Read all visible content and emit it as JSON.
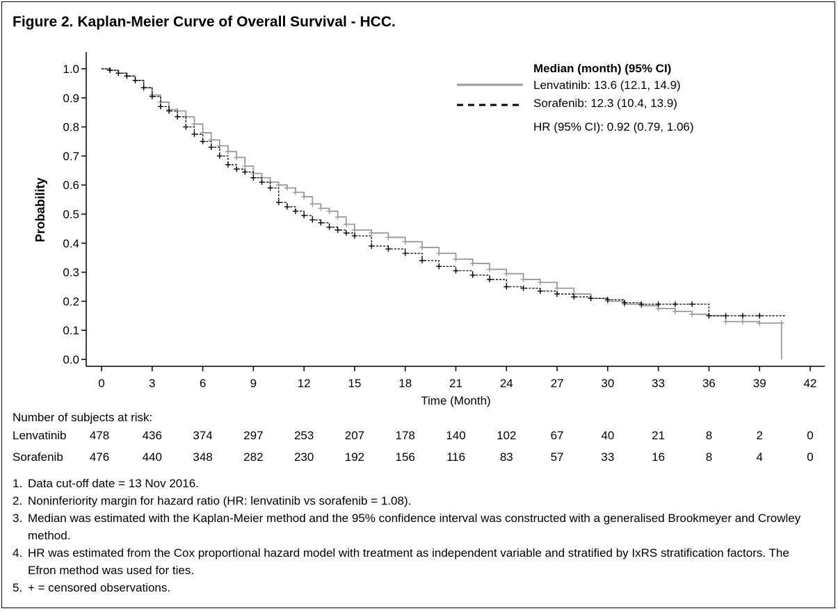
{
  "title": "Figure 2. Kaplan-Meier Curve of Overall Survival - HCC.",
  "chart_data": {
    "type": "line",
    "title": "Figure 2. Kaplan-Meier Curve of Overall Survival - HCC.",
    "xlabel": "Time (Month)",
    "ylabel": "Probability",
    "xlim": [
      0,
      42
    ],
    "ylim": [
      0,
      1
    ],
    "xticks": [
      0,
      3,
      6,
      9,
      12,
      15,
      18,
      21,
      24,
      27,
      30,
      33,
      36,
      39,
      42
    ],
    "yticks": [
      0.0,
      0.1,
      0.2,
      0.3,
      0.4,
      0.5,
      0.6,
      0.7,
      0.8,
      0.9,
      1.0
    ],
    "ytick_labels": [
      "0.0",
      "0.1",
      "0.2",
      "0.3",
      "0.4",
      "0.5",
      "0.6",
      "0.7",
      "0.8",
      "0.9",
      "1.0"
    ],
    "grid": false,
    "legend_position": "top-right",
    "legend_title": "Median (month) (95% CI)",
    "hr_text": "HR (95% CI): 0.92 (0.79, 1.06)",
    "series": [
      {
        "name": "Lenvatinib: 13.6 (12.1, 14.9)",
        "color": "#999999",
        "style": "solid",
        "x": [
          0,
          0.5,
          1,
          1.5,
          2,
          2.5,
          3,
          3.5,
          4,
          4.5,
          5,
          5.5,
          6,
          6.5,
          7,
          7.5,
          8,
          8.5,
          9,
          9.5,
          10,
          10.5,
          11,
          11.5,
          12,
          12.5,
          13,
          13.5,
          14,
          14.5,
          15,
          16,
          17,
          18,
          19,
          20,
          21,
          22,
          23,
          24,
          25,
          26,
          27,
          28,
          29,
          30,
          31,
          32,
          33,
          34,
          35,
          36,
          37,
          38,
          39,
          40.3,
          40.3
        ],
        "y": [
          1.0,
          0.995,
          0.985,
          0.975,
          0.96,
          0.935,
          0.91,
          0.885,
          0.86,
          0.855,
          0.835,
          0.81,
          0.78,
          0.755,
          0.735,
          0.715,
          0.695,
          0.665,
          0.64,
          0.625,
          0.61,
          0.6,
          0.59,
          0.575,
          0.56,
          0.535,
          0.52,
          0.51,
          0.49,
          0.465,
          0.445,
          0.435,
          0.42,
          0.405,
          0.385,
          0.365,
          0.345,
          0.33,
          0.31,
          0.295,
          0.275,
          0.265,
          0.245,
          0.225,
          0.21,
          0.2,
          0.19,
          0.185,
          0.175,
          0.165,
          0.155,
          0.15,
          0.13,
          0.13,
          0.125,
          0.125,
          0.0
        ]
      },
      {
        "name": "Sorafenib: 12.3 (10.4, 13.9)",
        "color": "#000000",
        "style": "dashed",
        "x": [
          0,
          0.5,
          1,
          1.5,
          2,
          2.5,
          3,
          3.5,
          4,
          4.5,
          5,
          5.5,
          6,
          6.5,
          7,
          7.5,
          8,
          8.5,
          9,
          9.5,
          10,
          10.5,
          11,
          11.5,
          12,
          12.5,
          13,
          13.5,
          14,
          14.5,
          15,
          16,
          17,
          18,
          19,
          20,
          21,
          22,
          23,
          24,
          25,
          26,
          27,
          28,
          29,
          30,
          31,
          32,
          33,
          34,
          35,
          36,
          37,
          38,
          39,
          40.5
        ],
        "y": [
          1.0,
          0.995,
          0.985,
          0.975,
          0.96,
          0.935,
          0.905,
          0.87,
          0.855,
          0.835,
          0.8,
          0.775,
          0.75,
          0.73,
          0.7,
          0.67,
          0.655,
          0.645,
          0.625,
          0.61,
          0.59,
          0.54,
          0.525,
          0.51,
          0.495,
          0.48,
          0.47,
          0.455,
          0.445,
          0.435,
          0.425,
          0.39,
          0.38,
          0.365,
          0.34,
          0.32,
          0.305,
          0.29,
          0.275,
          0.25,
          0.245,
          0.235,
          0.225,
          0.215,
          0.21,
          0.205,
          0.195,
          0.19,
          0.19,
          0.19,
          0.19,
          0.15,
          0.15,
          0.15,
          0.15,
          0.15
        ]
      }
    ]
  },
  "risk_table": {
    "heading": "Number of subjects at risk:",
    "times": [
      0,
      3,
      6,
      9,
      12,
      15,
      18,
      21,
      24,
      27,
      30,
      33,
      36,
      39,
      42
    ],
    "rows": [
      {
        "label": "Lenvatinib",
        "values": [
          "478",
          "436",
          "374",
          "297",
          "253",
          "207",
          "178",
          "140",
          "102",
          "67",
          "40",
          "21",
          "8",
          "2",
          "0"
        ]
      },
      {
        "label": "Sorafenib",
        "values": [
          "476",
          "440",
          "348",
          "282",
          "230",
          "192",
          "156",
          "116",
          "83",
          "57",
          "33",
          "16",
          "8",
          "4",
          "0"
        ]
      }
    ]
  },
  "notes": [
    {
      "num": "1.",
      "text": "Data cut-off date = 13 Nov 2016."
    },
    {
      "num": "2.",
      "text": "Noninferiority margin for hazard ratio (HR: lenvatinib vs sorafenib = 1.08)."
    },
    {
      "num": "3.",
      "text": "Median was estimated with the Kaplan-Meier method and the 95% confidence interval was constructed with a generalised Brookmeyer and Crowley method."
    },
    {
      "num": "4.",
      "text": "HR was estimated from the Cox proportional hazard model with treatment as independent variable and stratified by IxRS stratification factors. The Efron method was used for ties."
    },
    {
      "num": "5.",
      "text": "+ = censored observations."
    }
  ]
}
